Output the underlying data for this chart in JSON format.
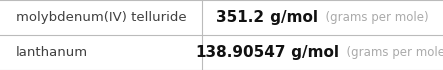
{
  "rows": [
    {
      "name": "molybdenum(IV) telluride",
      "value": "351.2",
      "unit": "g/mol",
      "unit_long": "(grams per mole)"
    },
    {
      "name": "lanthanum",
      "value": "138.90547",
      "unit": "g/mol",
      "unit_long": "(grams per mole)"
    }
  ],
  "col_split": 0.455,
  "background_color": "#ffffff",
  "border_color": "#bbbbbb",
  "text_color_name": "#404040",
  "text_color_value": "#111111",
  "text_color_unit_long": "#aaaaaa",
  "font_size_name": 9.5,
  "font_size_value": 11,
  "font_size_unit_long": 8.5
}
